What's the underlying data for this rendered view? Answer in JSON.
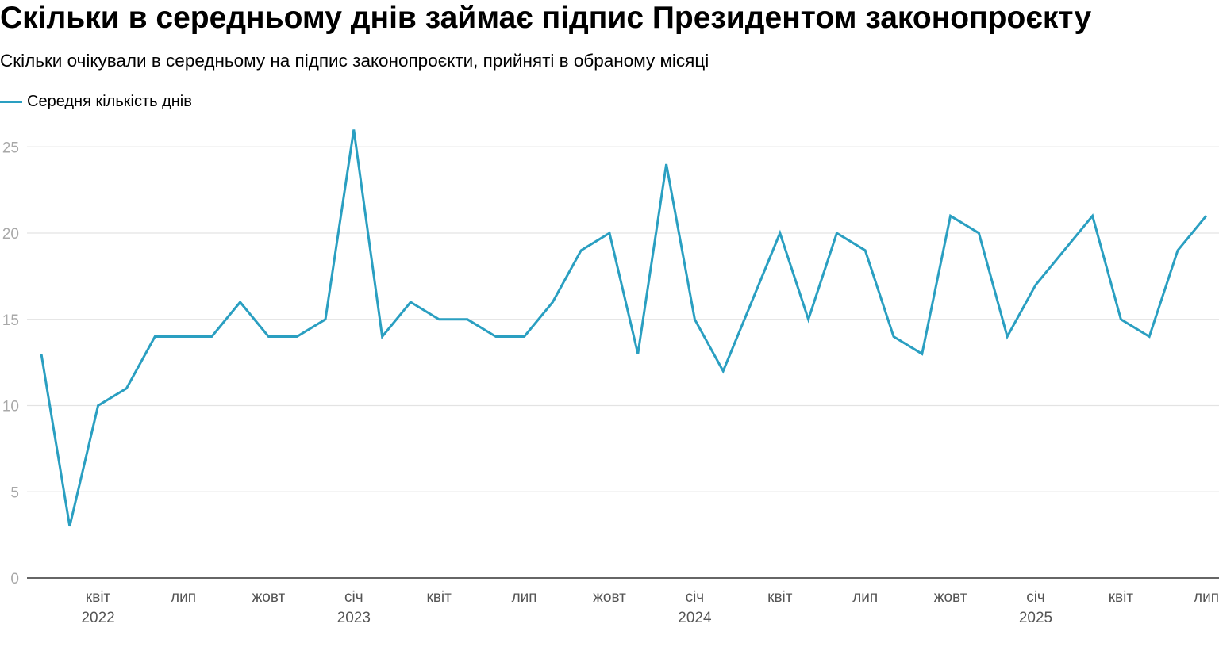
{
  "chart_data": {
    "type": "line",
    "title": "Скільки в середньому днів займає підпис Президентом законопроєкту",
    "subtitle": "Скільки очікували в середньому на підпис законопроєкти, прийняті в обраному місяці",
    "legend": {
      "position": "top-left"
    },
    "grid": true,
    "ylim": [
      0,
      27
    ],
    "yticks": [
      0,
      5,
      10,
      15,
      20,
      25
    ],
    "x": [
      "2022-02",
      "2022-03",
      "2022-04",
      "2022-05",
      "2022-06",
      "2022-07",
      "2022-08",
      "2022-09",
      "2022-10",
      "2022-11",
      "2022-12",
      "2023-01",
      "2023-02",
      "2023-03",
      "2023-04",
      "2023-05",
      "2023-06",
      "2023-07",
      "2023-08",
      "2023-09",
      "2023-10",
      "2023-11",
      "2023-12",
      "2024-01",
      "2024-02",
      "2024-03",
      "2024-04",
      "2024-05",
      "2024-06",
      "2024-07",
      "2024-08",
      "2024-09",
      "2024-10",
      "2024-11",
      "2024-12",
      "2025-01",
      "2025-02",
      "2025-03",
      "2025-04",
      "2025-05",
      "2025-06",
      "2025-07"
    ],
    "x_ticks": [
      {
        "at": "2022-04",
        "label": "квіт",
        "year": "2022"
      },
      {
        "at": "2022-07",
        "label": "лип"
      },
      {
        "at": "2022-10",
        "label": "жовт"
      },
      {
        "at": "2023-01",
        "label": "січ",
        "year": "2023"
      },
      {
        "at": "2023-04",
        "label": "квіт"
      },
      {
        "at": "2023-07",
        "label": "лип"
      },
      {
        "at": "2023-10",
        "label": "жовт"
      },
      {
        "at": "2024-01",
        "label": "січ",
        "year": "2024"
      },
      {
        "at": "2024-04",
        "label": "квіт"
      },
      {
        "at": "2024-07",
        "label": "лип"
      },
      {
        "at": "2024-10",
        "label": "жовт"
      },
      {
        "at": "2025-01",
        "label": "січ",
        "year": "2025"
      },
      {
        "at": "2025-04",
        "label": "квіт"
      },
      {
        "at": "2025-07",
        "label": "лип"
      }
    ],
    "series": [
      {
        "name": "Середня кількість днів",
        "color": "#2a9fc1",
        "values": [
          13,
          3,
          10,
          11,
          14,
          14,
          14,
          16,
          14,
          14,
          15,
          26,
          14,
          16,
          15,
          15,
          14,
          14,
          16,
          19,
          20,
          13,
          24,
          15,
          12,
          16,
          20,
          15,
          20,
          19,
          14,
          13,
          21,
          20,
          14,
          17,
          19,
          21,
          15,
          14,
          19,
          21
        ]
      }
    ]
  }
}
